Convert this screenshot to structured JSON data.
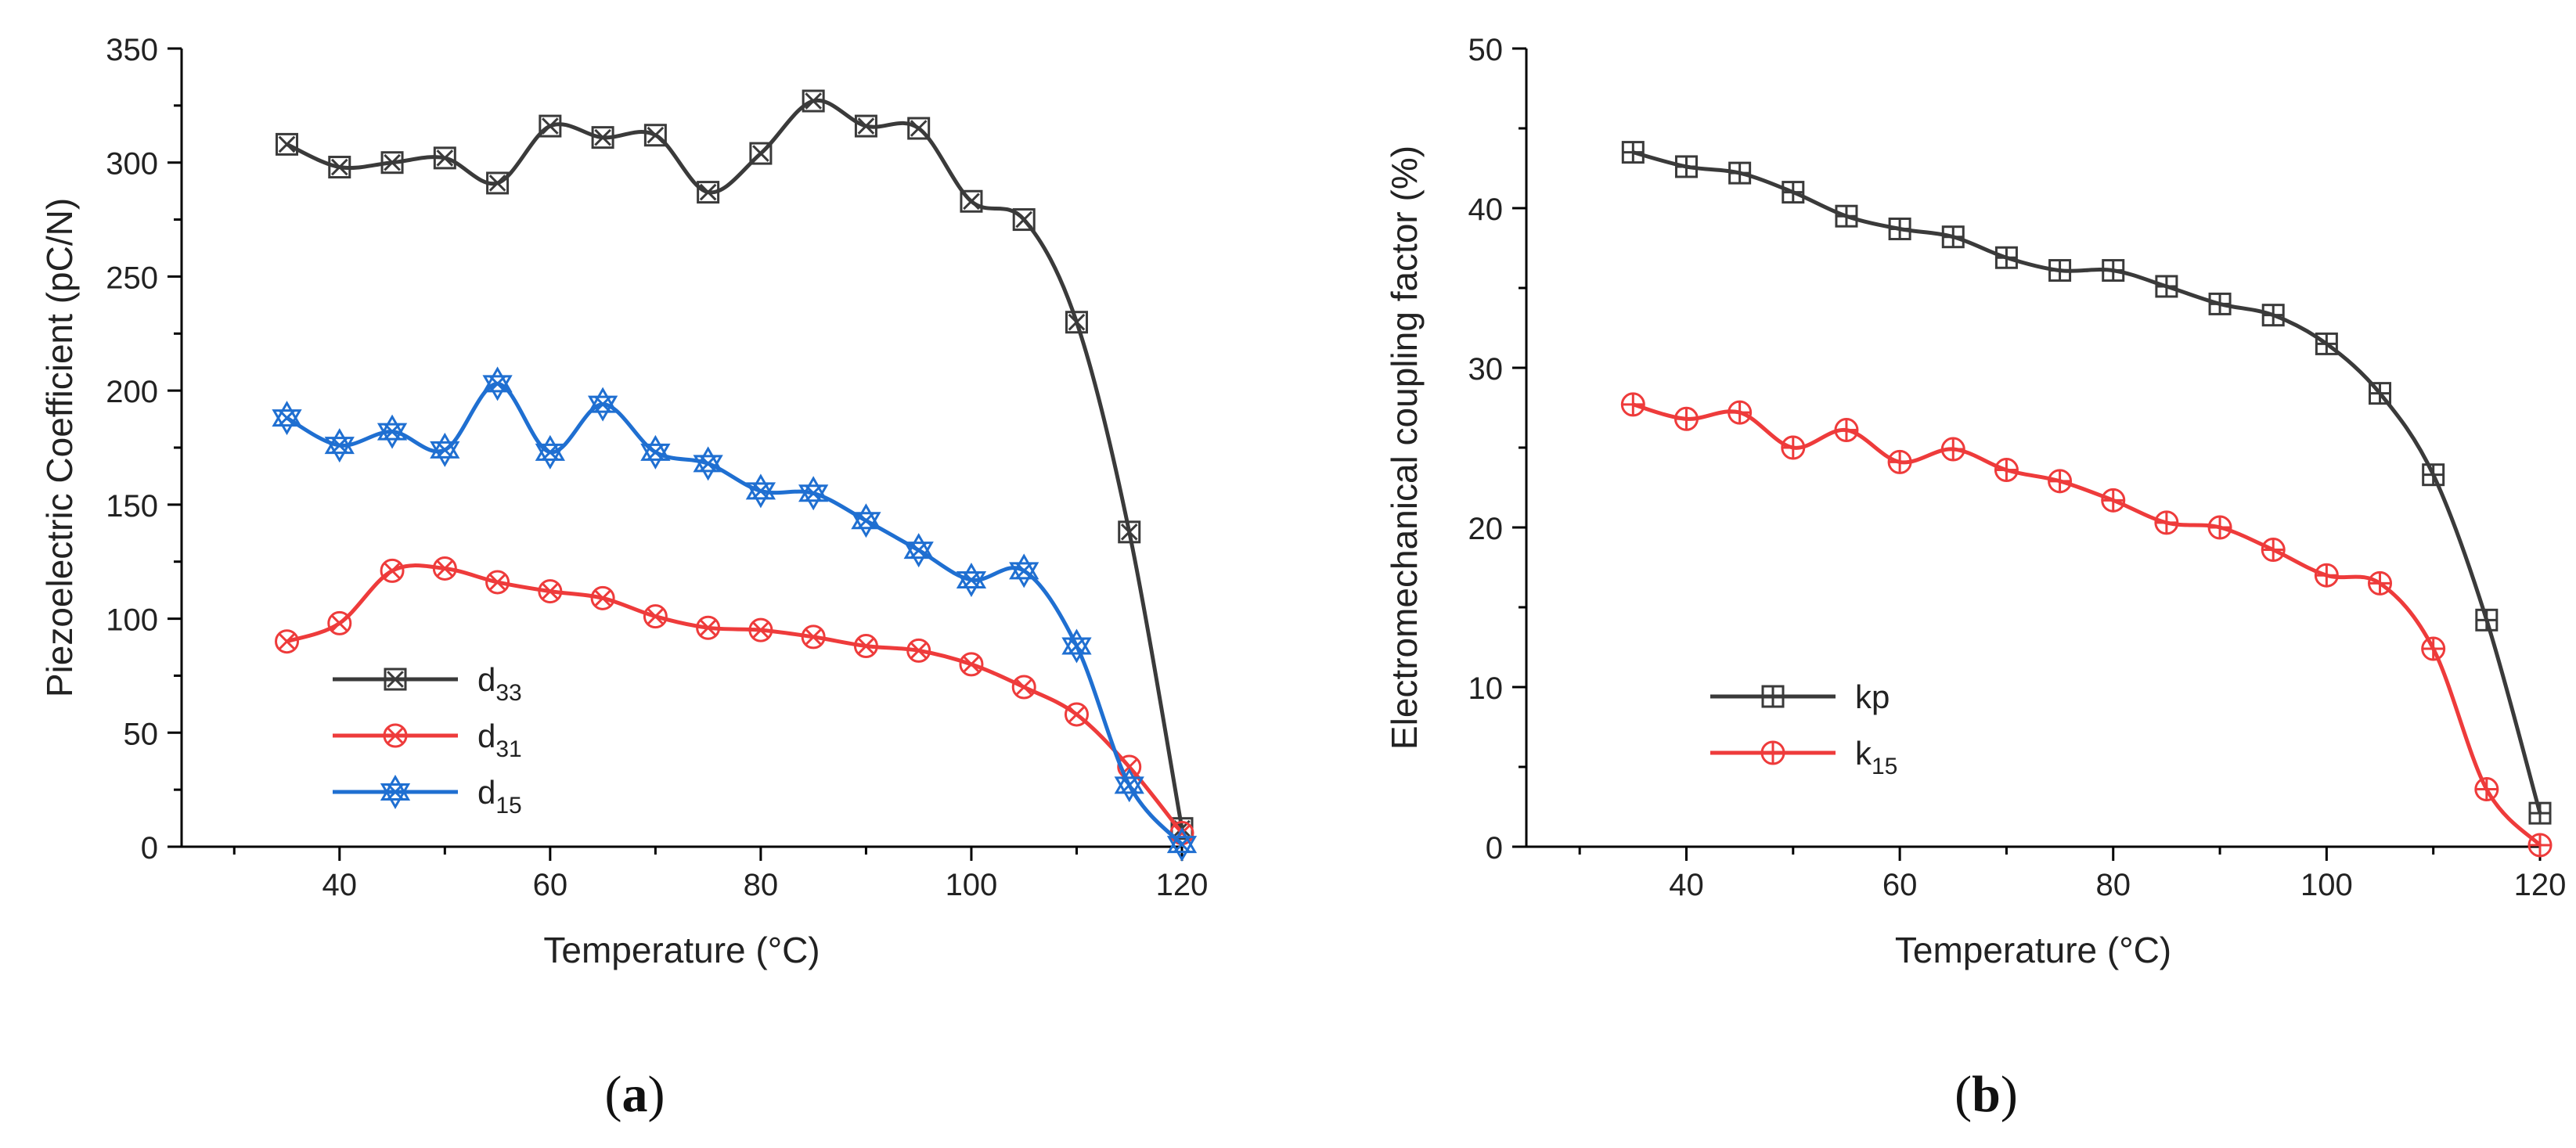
{
  "figure": {
    "panels": [
      "a",
      "b"
    ]
  },
  "colors": {
    "black_series": "#3a3a3a",
    "red_series": "#ee3b3b",
    "blue_series": "#1f6fd1",
    "axis": "#000000"
  },
  "chart_data": [
    {
      "type": "line",
      "panel_label": "a",
      "title": "",
      "xlabel": "Temperature (°C)",
      "ylabel": "Piezoelectric Coefficient (pC/N)",
      "xlim": [
        25,
        120
      ],
      "ylim": [
        0,
        350
      ],
      "xticks": [
        40,
        60,
        80,
        100,
        120
      ],
      "yticks": [
        0,
        50,
        100,
        150,
        200,
        250,
        300,
        350
      ],
      "grid": false,
      "legend_position": "lower-left",
      "series": [
        {
          "name": "d33",
          "legend_base": "d",
          "legend_sub": "33",
          "marker": "square-x",
          "color": "#3a3a3a",
          "x": [
            35,
            40,
            45,
            50,
            55,
            60,
            65,
            70,
            75,
            80,
            85,
            90,
            95,
            100,
            105,
            110,
            115,
            120
          ],
          "y": [
            308,
            298,
            300,
            302,
            291,
            316,
            311,
            312,
            287,
            304,
            327,
            316,
            315,
            283,
            275,
            230,
            138,
            8
          ]
        },
        {
          "name": "d31",
          "legend_base": "d",
          "legend_sub": "31",
          "marker": "circle-x",
          "color": "#ee3b3b",
          "x": [
            35,
            40,
            45,
            50,
            55,
            60,
            65,
            70,
            75,
            80,
            85,
            90,
            95,
            100,
            105,
            110,
            115,
            120
          ],
          "y": [
            90,
            98,
            121,
            122,
            116,
            112,
            109,
            101,
            96,
            95,
            92,
            88,
            86,
            80,
            70,
            58,
            35,
            6
          ]
        },
        {
          "name": "d15",
          "legend_base": "d",
          "legend_sub": "15",
          "marker": "star-x",
          "color": "#1f6fd1",
          "x": [
            35,
            40,
            45,
            50,
            55,
            60,
            65,
            70,
            75,
            80,
            85,
            90,
            95,
            100,
            105,
            110,
            115,
            120
          ],
          "y": [
            188,
            176,
            182,
            174,
            203,
            173,
            194,
            173,
            168,
            156,
            155,
            143,
            130,
            117,
            121,
            88,
            27,
            1
          ]
        }
      ]
    },
    {
      "type": "line",
      "panel_label": "b",
      "title": "",
      "xlabel": "Temperature (°C)",
      "ylabel": "Electromechanical coupling factor (%)",
      "xlim": [
        25,
        120
      ],
      "ylim": [
        0,
        50
      ],
      "xticks": [
        40,
        60,
        80,
        100,
        120
      ],
      "yticks": [
        0,
        10,
        20,
        30,
        40,
        50
      ],
      "grid": false,
      "legend_position": "lower-left",
      "series": [
        {
          "name": "kp",
          "legend_base": "kp",
          "legend_sub": "",
          "marker": "square-plus",
          "color": "#3a3a3a",
          "x": [
            35,
            40,
            45,
            50,
            55,
            60,
            65,
            70,
            75,
            80,
            85,
            90,
            95,
            100,
            105,
            110,
            115,
            120
          ],
          "y": [
            43.5,
            42.6,
            42.2,
            41.0,
            39.5,
            38.7,
            38.2,
            36.9,
            36.1,
            36.1,
            35.1,
            34.0,
            33.3,
            31.5,
            28.4,
            23.3,
            14.2,
            2.1
          ]
        },
        {
          "name": "k15",
          "legend_base": "k",
          "legend_sub": "15",
          "marker": "circle-plus",
          "color": "#ee3b3b",
          "x": [
            35,
            40,
            45,
            50,
            55,
            60,
            65,
            70,
            75,
            80,
            85,
            90,
            95,
            100,
            105,
            110,
            115,
            120
          ],
          "y": [
            27.7,
            26.8,
            27.2,
            25.0,
            26.1,
            24.1,
            24.9,
            23.6,
            22.9,
            21.7,
            20.3,
            20.0,
            18.6,
            17.0,
            16.5,
            12.4,
            3.6,
            0.1
          ]
        }
      ]
    }
  ]
}
